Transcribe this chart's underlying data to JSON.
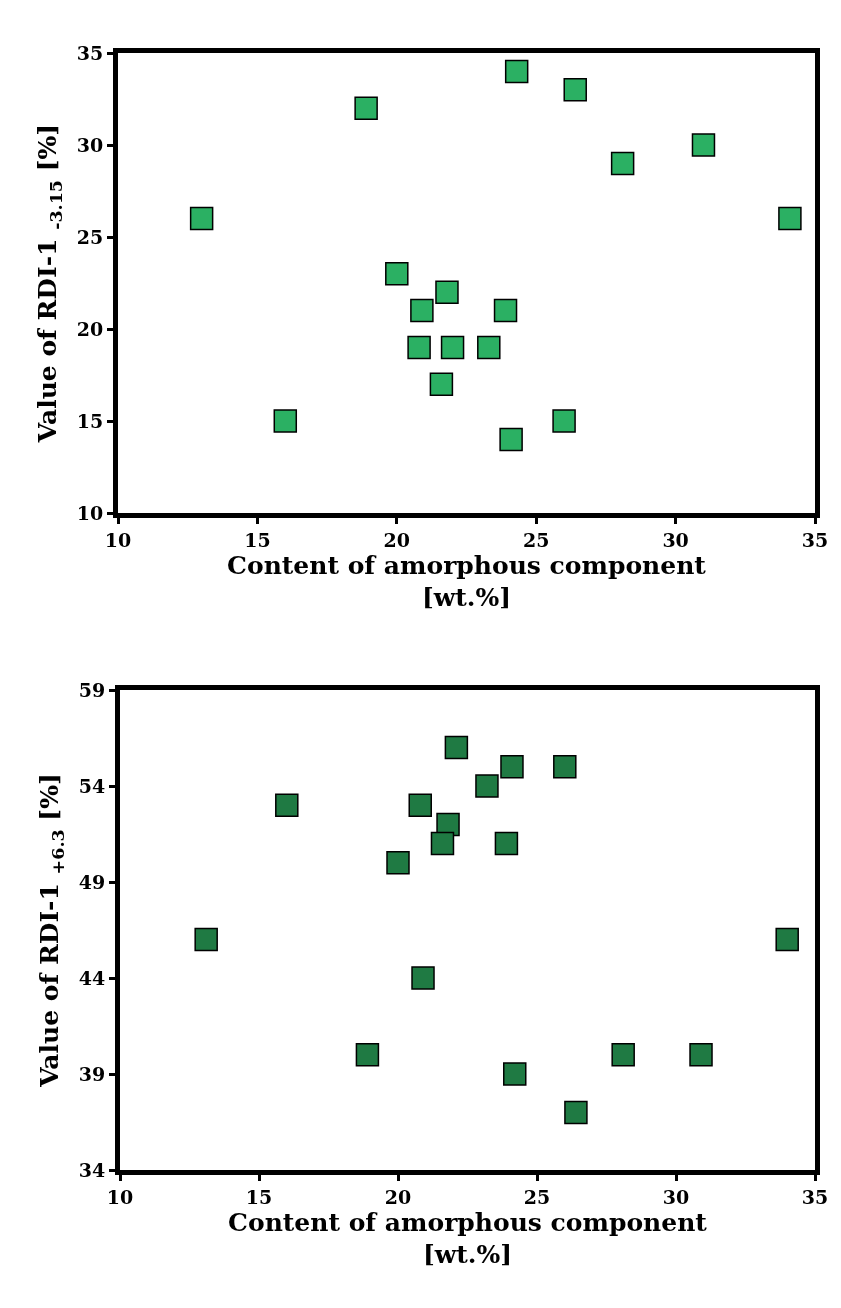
{
  "chart_data": [
    {
      "type": "scatter",
      "xlabel": "Content of amorphous component\n[wt.%]",
      "ylabel": "Value of RDI-1 $_{-3.15}$ [%]",
      "marker": "square",
      "xlim": [
        10,
        35
      ],
      "xticks": [
        10,
        15,
        20,
        25,
        30,
        35
      ],
      "ylim": [
        10,
        35
      ],
      "yticks": [
        10,
        15,
        20,
        25,
        30,
        35
      ],
      "series": [
        {
          "color": "#2bb063",
          "x": [
            13,
            16,
            18.9,
            20,
            20.9,
            20.8,
            21.8,
            22,
            21.6,
            23.3,
            23.9,
            24.3,
            24.1,
            26,
            26.4,
            28.1,
            31,
            34.1
          ],
          "values": [
            26,
            15,
            32,
            23,
            21,
            19,
            22,
            19,
            17,
            19,
            21,
            34,
            14,
            15,
            33,
            29,
            30,
            26
          ]
        }
      ]
    },
    {
      "type": "scatter",
      "xlabel": "Content of amorphous component\n[wt.%]",
      "ylabel": "Value of RDI-1 $_{+6.3}$ [%]",
      "marker": "square",
      "xlim": [
        10,
        35
      ],
      "xticks": [
        10,
        15,
        20,
        25,
        30,
        35
      ],
      "ylim": [
        34,
        59
      ],
      "yticks": [
        34,
        39,
        44,
        49,
        54,
        59
      ],
      "series": [
        {
          "color": "#1f7a43",
          "x": [
            22.1,
            24.1,
            26,
            23.2,
            16,
            20.8,
            21.8,
            21.6,
            23.9,
            20,
            13.1,
            34,
            20.9,
            18.9,
            28.1,
            30.9,
            24.2,
            26.4
          ],
          "values": [
            56,
            55,
            55,
            54,
            53,
            53,
            52,
            51,
            51,
            50,
            46,
            46,
            44,
            40,
            40,
            40,
            39,
            37
          ]
        }
      ]
    }
  ]
}
